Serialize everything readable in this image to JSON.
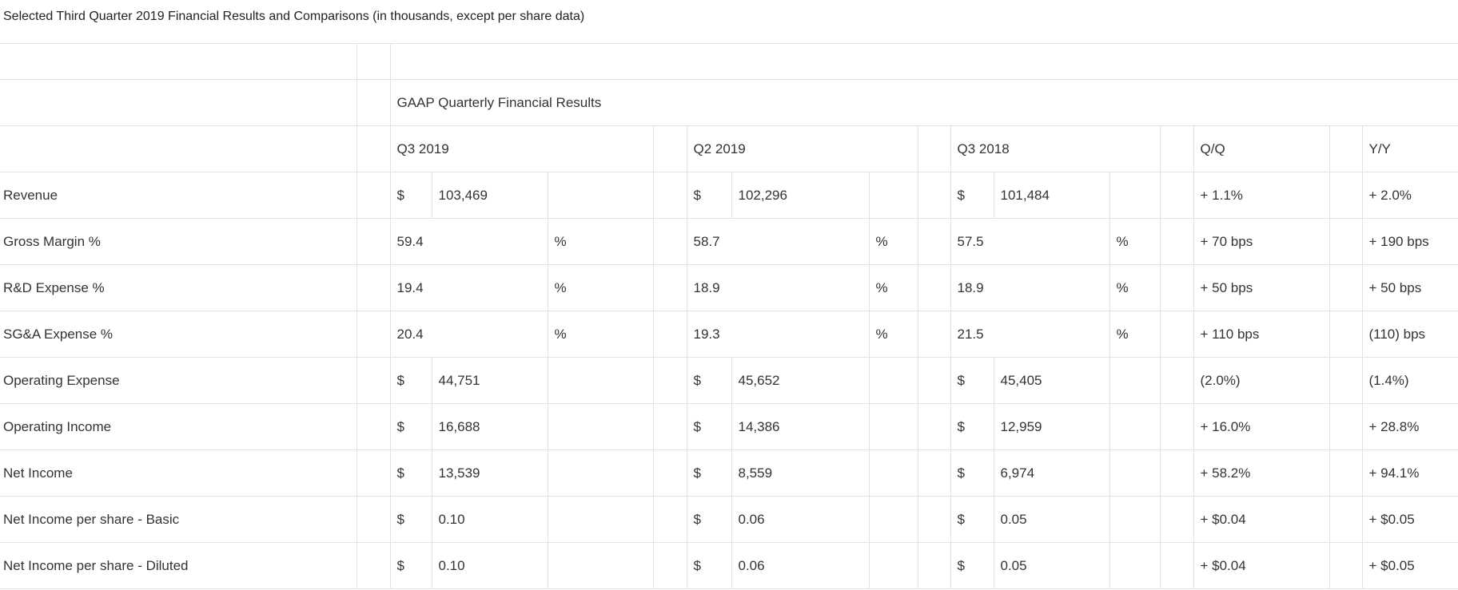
{
  "caption": "Selected Third Quarter 2019 Financial Results and Comparisons (in thousands, except per share data)",
  "group_header": "GAAP Quarterly Financial Results",
  "columns": {
    "q3_2019": "Q3 2019",
    "q2_2019": "Q2 2019",
    "q3_2018": "Q3 2018",
    "qq": "Q/Q",
    "yy": "Y/Y"
  },
  "rows": [
    {
      "label": "Revenue",
      "q3_2019": {
        "cur": "$",
        "val": "103,469",
        "suf": ""
      },
      "q2_2019": {
        "cur": "$",
        "val": "102,296",
        "suf": ""
      },
      "q3_2018": {
        "cur": "$",
        "val": "101,484",
        "suf": ""
      },
      "qq": "+ 1.1%",
      "yy": "+ 2.0%"
    },
    {
      "label": "Gross Margin %",
      "q3_2019": {
        "cur": "",
        "val": "59.4",
        "suf": "%"
      },
      "q2_2019": {
        "cur": "",
        "val": "58.7",
        "suf": "%"
      },
      "q3_2018": {
        "cur": "",
        "val": "57.5",
        "suf": "%"
      },
      "qq": "+ 70 bps",
      "yy": "+ 190 bps"
    },
    {
      "label": "R&D Expense %",
      "q3_2019": {
        "cur": "",
        "val": "19.4",
        "suf": "%"
      },
      "q2_2019": {
        "cur": "",
        "val": "18.9",
        "suf": "%"
      },
      "q3_2018": {
        "cur": "",
        "val": "18.9",
        "suf": "%"
      },
      "qq": "+ 50 bps",
      "yy": "+ 50 bps"
    },
    {
      "label": "SG&A Expense %",
      "q3_2019": {
        "cur": "",
        "val": "20.4",
        "suf": "%"
      },
      "q2_2019": {
        "cur": "",
        "val": "19.3",
        "suf": "%"
      },
      "q3_2018": {
        "cur": "",
        "val": "21.5",
        "suf": "%"
      },
      "qq": "+ 110 bps",
      "yy": "(110) bps"
    },
    {
      "label": "Operating Expense",
      "q3_2019": {
        "cur": "$",
        "val": "44,751",
        "suf": ""
      },
      "q2_2019": {
        "cur": "$",
        "val": "45,652",
        "suf": ""
      },
      "q3_2018": {
        "cur": "$",
        "val": "45,405",
        "suf": ""
      },
      "qq": "(2.0%)",
      "yy": "(1.4%)"
    },
    {
      "label": "Operating Income",
      "q3_2019": {
        "cur": "$",
        "val": "16,688",
        "suf": ""
      },
      "q2_2019": {
        "cur": "$",
        "val": "14,386",
        "suf": ""
      },
      "q3_2018": {
        "cur": "$",
        "val": "12,959",
        "suf": ""
      },
      "qq": "+ 16.0%",
      "yy": "+ 28.8%"
    },
    {
      "label": "Net Income",
      "q3_2019": {
        "cur": "$",
        "val": "13,539",
        "suf": ""
      },
      "q2_2019": {
        "cur": "$",
        "val": "8,559",
        "suf": ""
      },
      "q3_2018": {
        "cur": "$",
        "val": "6,974",
        "suf": ""
      },
      "qq": "+ 58.2%",
      "yy": "+ 94.1%"
    },
    {
      "label": "Net Income per share - Basic",
      "q3_2019": {
        "cur": "$",
        "val": "0.10",
        "suf": ""
      },
      "q2_2019": {
        "cur": "$",
        "val": "0.06",
        "suf": ""
      },
      "q3_2018": {
        "cur": "$",
        "val": "0.05",
        "suf": ""
      },
      "qq": "+ $0.04",
      "yy": "+ $0.05"
    },
    {
      "label": "Net Income per share - Diluted",
      "q3_2019": {
        "cur": "$",
        "val": "0.10",
        "suf": ""
      },
      "q2_2019": {
        "cur": "$",
        "val": "0.06",
        "suf": ""
      },
      "q3_2018": {
        "cur": "$",
        "val": "0.05",
        "suf": ""
      },
      "qq": "+ $0.04",
      "yy": "+ $0.05"
    }
  ]
}
